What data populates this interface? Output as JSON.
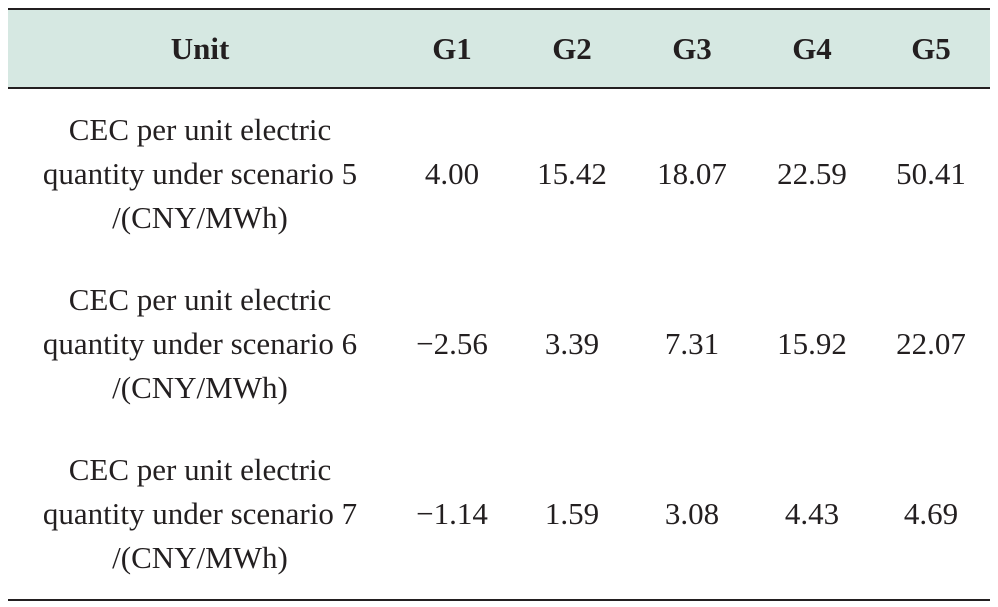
{
  "table": {
    "headers": [
      "Unit",
      "G1",
      "G2",
      "G3",
      "G4",
      "G5"
    ],
    "rows": [
      {
        "label_lines": [
          "CEC per unit electric",
          "quantity under scenario 5",
          "/(CNY/MWh)"
        ],
        "values": [
          "4.00",
          "15.42",
          "18.07",
          "22.59",
          "50.41"
        ]
      },
      {
        "label_lines": [
          "CEC per unit electric",
          "quantity under scenario 6",
          "/(CNY/MWh)"
        ],
        "values": [
          "−2.56",
          "3.39",
          "7.31",
          "15.92",
          "22.07"
        ]
      },
      {
        "label_lines": [
          "CEC per unit electric",
          "quantity under scenario 7",
          "/(CNY/MWh)"
        ],
        "values": [
          "−1.14",
          "1.59",
          "3.08",
          "4.43",
          "4.69"
        ]
      }
    ]
  }
}
